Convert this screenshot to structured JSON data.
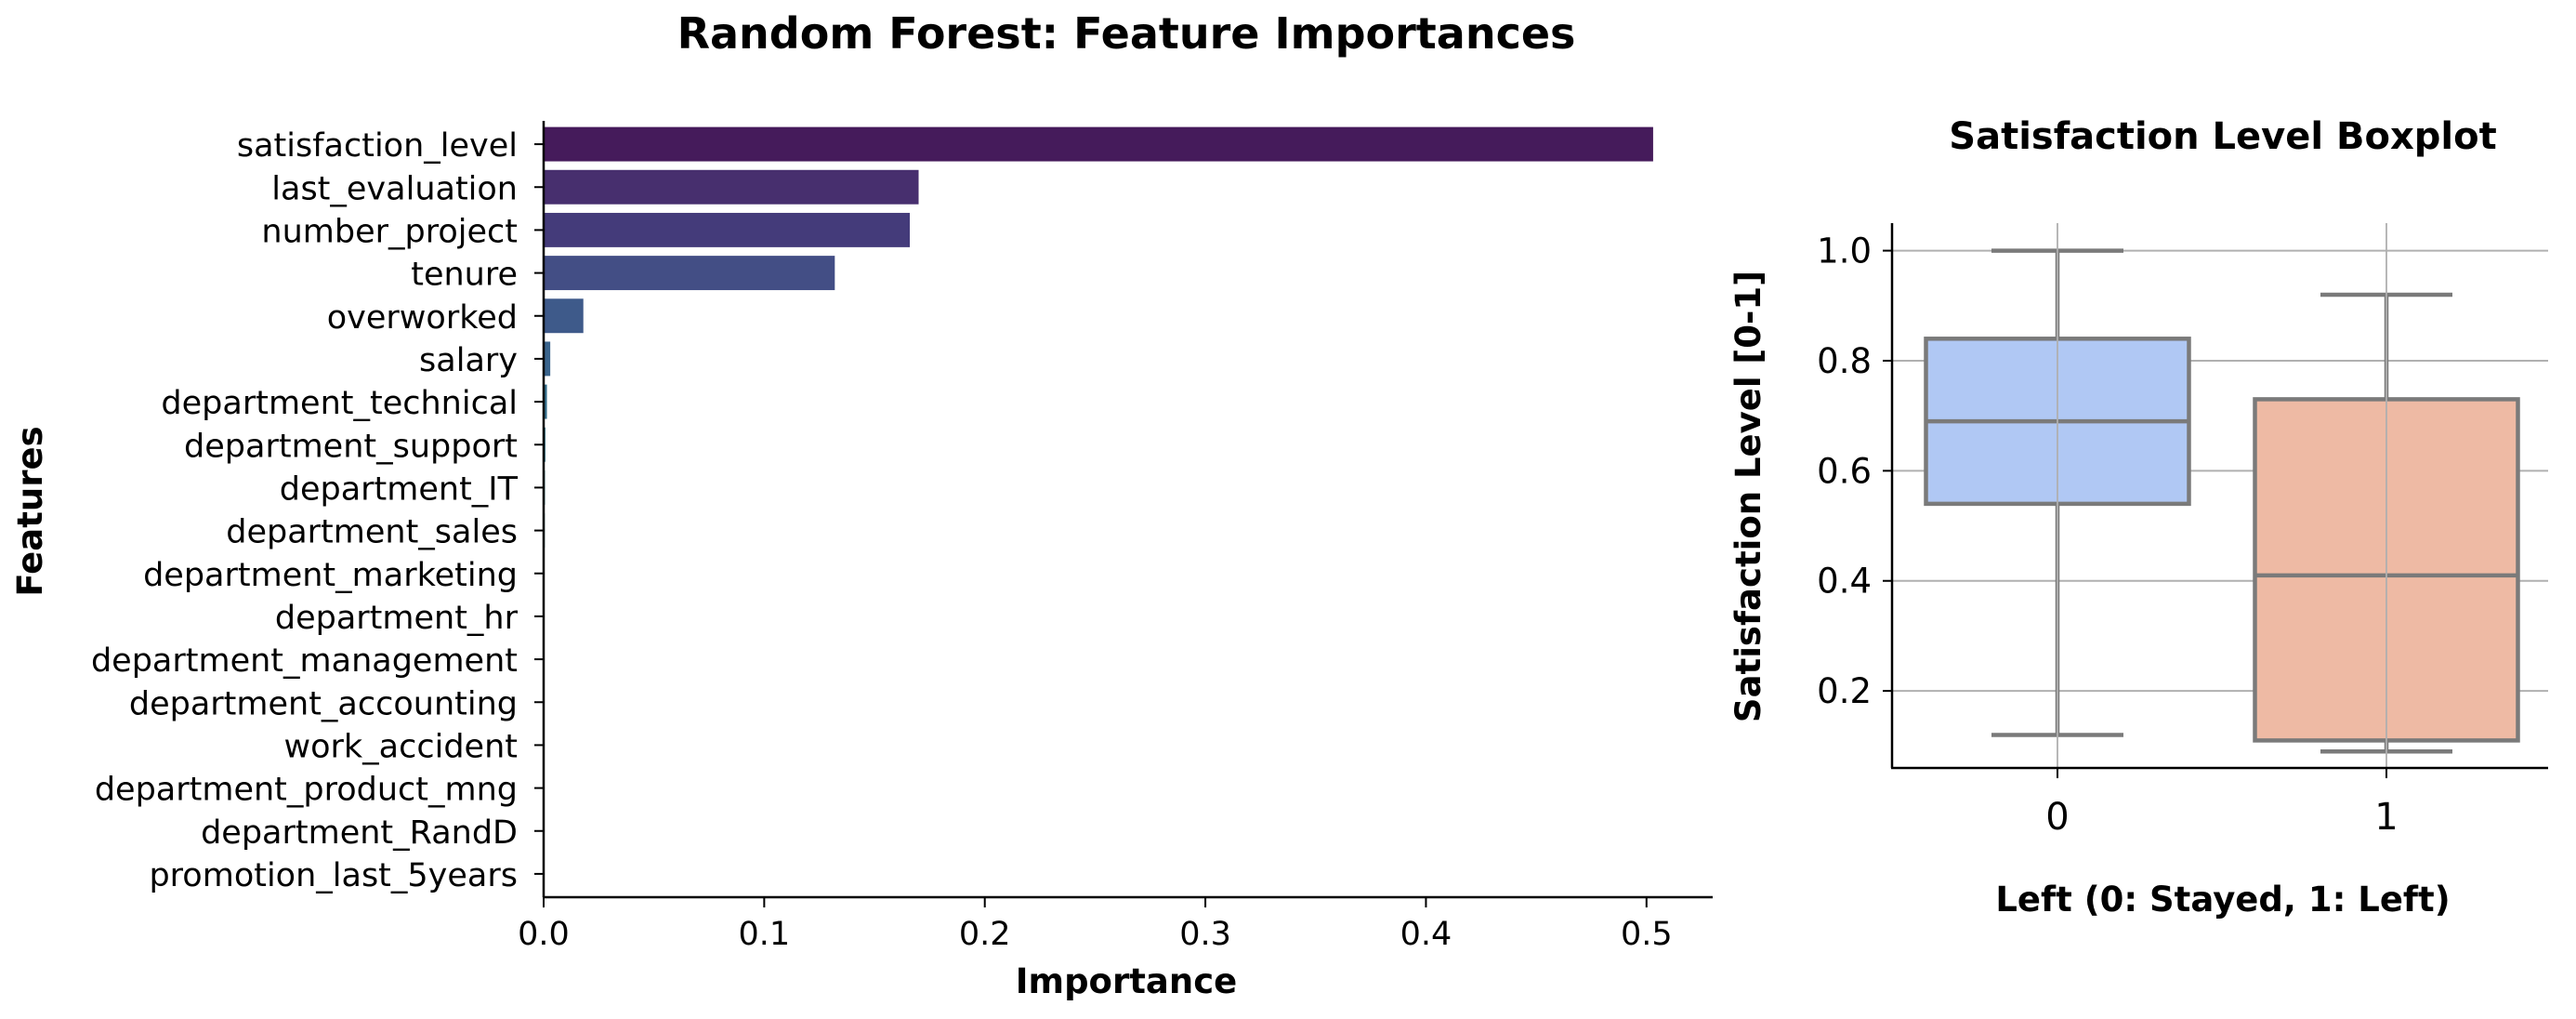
{
  "chart_data": [
    {
      "type": "bar",
      "orientation": "horizontal",
      "title": "Random Forest: Feature Importances",
      "xlabel": "Importance",
      "ylabel": "Features",
      "xlim": [
        0,
        0.53
      ],
      "xticks": [
        "0.0",
        "0.1",
        "0.2",
        "0.3",
        "0.4",
        "0.5"
      ],
      "grid": false,
      "categories": [
        "satisfaction_level",
        "last_evaluation",
        "number_project",
        "tenure",
        "overworked",
        "salary",
        "department_technical",
        "department_support",
        "department_IT",
        "department_sales",
        "department_marketing",
        "department_hr",
        "department_management",
        "department_accounting",
        "work_accident",
        "department_product_mng",
        "department_RandD",
        "promotion_last_5years"
      ],
      "values": [
        0.503,
        0.17,
        0.166,
        0.132,
        0.018,
        0.003,
        0.0015,
        0.0008,
        0.0006,
        0.0005,
        0.0004,
        0.0004,
        0.0003,
        0.0003,
        0.0002,
        0.0002,
        0.0001,
        0.0001
      ],
      "colors": [
        "#451b5b",
        "#472f6e",
        "#443b7a",
        "#434e85",
        "#3e5a8a",
        "#3a648c",
        "#35708e",
        "#327a8e",
        "#2d858e",
        "#2a908c",
        "#26998a",
        "#25a685",
        "#2ab07f",
        "#3dbb74",
        "#56c567",
        "#75d054",
        "#97d83f",
        "#c1df30"
      ]
    },
    {
      "type": "boxplot",
      "title": "Satisfaction Level Boxplot",
      "xlabel": "Left (0: Stayed, 1: Left)",
      "ylabel": "Satisfaction Level [0-1]",
      "ylim": [
        0.06,
        1.05
      ],
      "yticks": [
        "0.2",
        "0.4",
        "0.6",
        "0.8",
        "1.0"
      ],
      "grid": true,
      "categories": [
        "0",
        "1"
      ],
      "boxes": [
        {
          "category": "0",
          "whisker_low": 0.12,
          "q1": 0.54,
          "median": 0.69,
          "q3": 0.84,
          "whisker_high": 1.0,
          "color": "#b0c8f4"
        },
        {
          "category": "1",
          "whisker_low": 0.09,
          "q1": 0.11,
          "median": 0.41,
          "q3": 0.73,
          "whisker_high": 0.92,
          "color": "#eebaa4"
        }
      ]
    }
  ]
}
